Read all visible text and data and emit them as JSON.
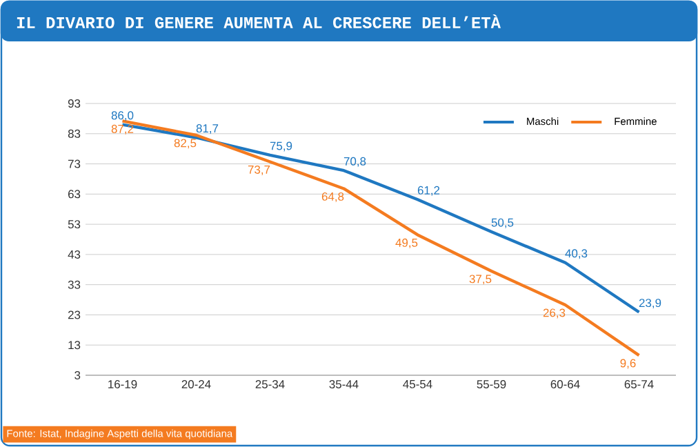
{
  "chart_data": {
    "type": "line",
    "title": "IL DIVARIO DI GENERE AUMENTA AL CRESCERE DELL’ETÀ",
    "categories": [
      "16-19",
      "20-24",
      "25-34",
      "35-44",
      "45-54",
      "55-59",
      "60-64",
      "65-74"
    ],
    "series": [
      {
        "name": "Maschi",
        "color": "#1f78c1",
        "values": [
          86.0,
          81.7,
          75.9,
          70.8,
          61.2,
          50.5,
          40.3,
          23.9
        ],
        "value_labels": [
          "86,0",
          "81,7",
          "75,9",
          "70,8",
          "61,2",
          "50,5",
          "40,3",
          "23,9"
        ]
      },
      {
        "name": "Femmine",
        "color": "#f47b20",
        "values": [
          87.2,
          82.5,
          73.7,
          64.8,
          49.5,
          37.5,
          26.3,
          9.6
        ],
        "value_labels": [
          "87,2",
          "82,5",
          "73,7",
          "64,8",
          "49,5",
          "37,5",
          "26,3",
          "9,6"
        ]
      }
    ],
    "ylim": [
      3,
      93
    ],
    "yticks": [
      3,
      13,
      23,
      33,
      43,
      53,
      63,
      73,
      83,
      93
    ],
    "grid": "y",
    "legend": "top right",
    "annotations": [
      "Fonte: Istat, Indagine Aspetti della vita quotidiana"
    ]
  }
}
